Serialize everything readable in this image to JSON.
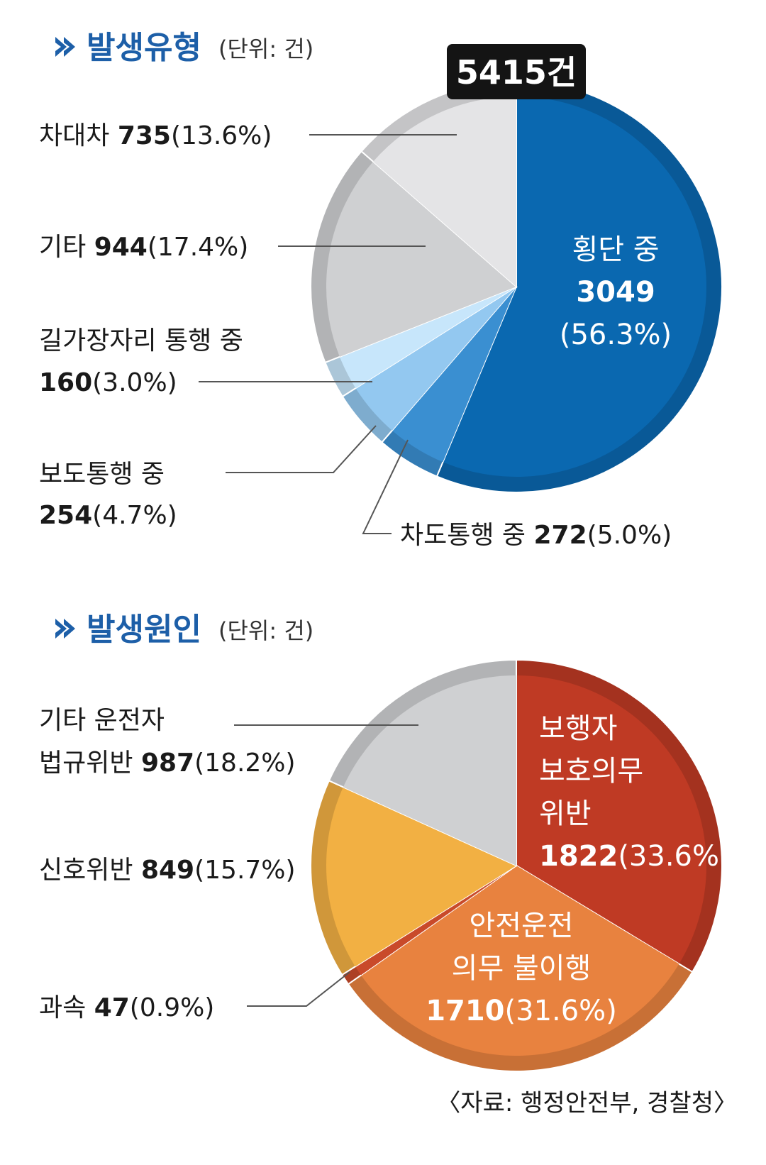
{
  "sections": {
    "type": {
      "title": "발생유형",
      "unit": "(단위: 건)"
    },
    "cause": {
      "title": "발생원인",
      "unit": "(단위: 건)"
    }
  },
  "total_badge": "5415건",
  "source": "〈자료: 행정안전부, 경찰청〉",
  "chart_data": [
    {
      "type": "pie",
      "title": "발생유형",
      "unit": "건",
      "total": 5415,
      "slices": [
        {
          "name": "횡단 중",
          "value": 3049,
          "percent": 56.3,
          "color": "#0a68b0"
        },
        {
          "name": "차도통행 중",
          "value": 272,
          "percent": 5.0,
          "color": "#3a8fd1"
        },
        {
          "name": "보도통행 중",
          "value": 254,
          "percent": 4.7,
          "color": "#93c8f0"
        },
        {
          "name": "길가장자리 통행 중",
          "value": 160,
          "percent": 3.0,
          "color": "#c7e6fb"
        },
        {
          "name": "기타",
          "value": 944,
          "percent": 17.4,
          "color": "#cfd0d2"
        },
        {
          "name": "차대차",
          "value": 735,
          "percent": 13.6,
          "color": "#e4e4e6"
        }
      ],
      "labels": {
        "main_name": "횡단 중",
        "main_value": "3049",
        "main_pct": "(56.3%)",
        "s1_name": "차도통행 중 ",
        "s1_value": "272",
        "s1_pct": "(5.0%)",
        "s2_name": "보도통행 중",
        "s2_value": "254",
        "s2_pct": "(4.7%)",
        "s3_name": "길가장자리 통행 중",
        "s3_value": "160",
        "s3_pct": "(3.0%)",
        "s4_name": "기타 ",
        "s4_value": "944",
        "s4_pct": "(17.4%)",
        "s5_name": "차대차 ",
        "s5_value": "735",
        "s5_pct": "(13.6%)"
      }
    },
    {
      "type": "pie",
      "title": "발생원인",
      "unit": "건",
      "slices": [
        {
          "name": "보행자 보호의무 위반",
          "value": 1822,
          "percent": 33.6,
          "color": "#bf3a24"
        },
        {
          "name": "안전운전 의무 불이행",
          "value": 1710,
          "percent": 31.6,
          "color": "#e8823f"
        },
        {
          "name": "과속",
          "value": 47,
          "percent": 0.9,
          "color": "#c94a2a"
        },
        {
          "name": "신호위반",
          "value": 849,
          "percent": 15.7,
          "color": "#f2b043"
        },
        {
          "name": "기타 운전자 법규위반",
          "value": 987,
          "percent": 18.2,
          "color": "#cfd0d2"
        }
      ],
      "labels": {
        "c1_line1": "보행자",
        "c1_line2": "보호의무",
        "c1_line3": "위반",
        "c1_value": "1822",
        "c1_pct": "(33.6%)",
        "c2_line1": "안전운전",
        "c2_line2": "의무 불이행",
        "c2_value": "1710",
        "c2_pct": "(31.6%)",
        "c3_name": "과속 ",
        "c3_value": "47",
        "c3_pct": "(0.9%)",
        "c4_name": "신호위반 ",
        "c4_value": "849",
        "c4_pct": "(15.7%)",
        "c5_line1": "기타 운전자",
        "c5_line2": "법규위반 ",
        "c5_value": "987",
        "c5_pct": "(18.2%)"
      }
    }
  ]
}
